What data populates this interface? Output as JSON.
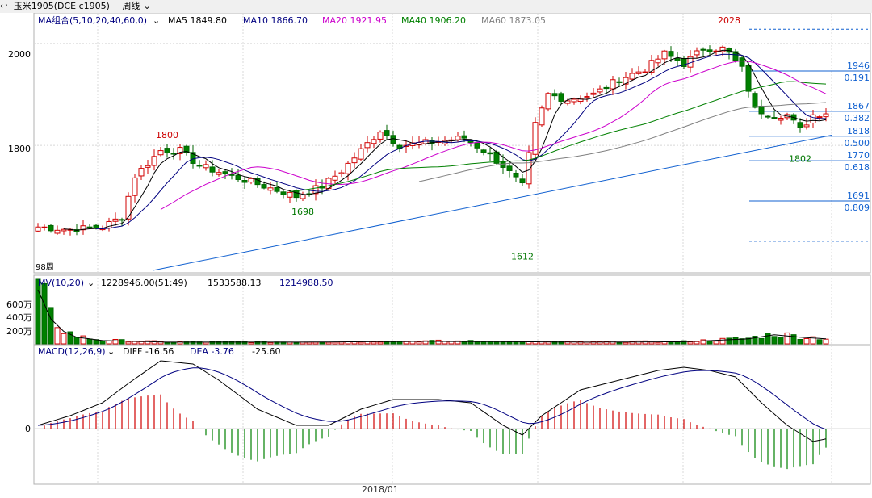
{
  "title_bar": {
    "symbol_prefix": "↩",
    "name": "玉米1905(DCE c1905)",
    "period": "周线",
    "period_arrow": "⌄"
  },
  "price_panel": {
    "legend_name": "MA组合(5,10,20,40,60,0)",
    "legend_arrow": "⌄",
    "ma": [
      {
        "label": "MA5 1849.80",
        "color": "#000000"
      },
      {
        "label": "MA10 1866.70",
        "color": "#000080"
      },
      {
        "label": "MA20 1921.95",
        "color": "#cc00cc"
      },
      {
        "label": "MA40 1906.20",
        "color": "#008000"
      },
      {
        "label": "MA60 1873.05",
        "color": "#808080"
      }
    ],
    "y_ticks": [
      {
        "value": 2000,
        "label": "2000"
      },
      {
        "value": 1800,
        "label": "1800"
      }
    ],
    "ylim": [
      1550,
      2060
    ],
    "markers": [
      {
        "label": "1800",
        "index": 20,
        "value": 1808,
        "color": "#cc0000",
        "pos": "above"
      },
      {
        "label": "1698",
        "index": 41,
        "value": 1683,
        "color": "#007700",
        "pos": "below"
      },
      {
        "label": "1612",
        "index": 75,
        "value": 1595,
        "color": "#007700",
        "pos": "below"
      },
      {
        "label": "2028",
        "index": 107,
        "value": 2033,
        "color": "#cc0000",
        "pos": "above"
      },
      {
        "label": "1802",
        "index": 118,
        "value": 1787,
        "color": "#007700",
        "pos": "below"
      }
    ],
    "fib_levels": [
      {
        "price": 2028,
        "label": "",
        "ratio": "",
        "dashed": true
      },
      {
        "price": 1946,
        "label": "1946",
        "ratio": "0.191",
        "dashed": false
      },
      {
        "price": 1867,
        "label": "1867",
        "ratio": "0.382",
        "dashed": false
      },
      {
        "price": 1818,
        "label": "1818",
        "ratio": "0.500",
        "dashed": false
      },
      {
        "price": 1770,
        "label": "1770",
        "ratio": "0.618",
        "dashed": false
      },
      {
        "price": 1691,
        "label": "1691",
        "ratio": "0.809",
        "dashed": false
      },
      {
        "price": 1612,
        "label": "",
        "ratio": "",
        "dashed": true
      }
    ],
    "corner_label": "98周",
    "date_label": "2018/01"
  },
  "volume_panel": {
    "legend_name": "MV(10,20)",
    "legend_arrow": "⌄",
    "values": [
      {
        "label": "1228946.00(51:49)",
        "color": "#000000"
      },
      {
        "label": "1533588.13",
        "color": "#000000"
      },
      {
        "label": "1214988.50",
        "color": "#000080"
      }
    ],
    "y_ticks": [
      "600万",
      "400万",
      "200万"
    ]
  },
  "macd_panel": {
    "legend_name": "MACD(12,26,9)",
    "legend_arrow": "⌄",
    "values": [
      {
        "label": "DIFF -16.56",
        "color": "#000000"
      },
      {
        "label": "DEA -3.76",
        "color": "#000080"
      },
      {
        "label": "-25.60",
        "color": "#000000"
      }
    ],
    "zero_label": "0"
  },
  "chart_data": {
    "type": "candlestick",
    "x_axis_label": "2018/01",
    "close_anchors": [
      [
        0,
        1640
      ],
      [
        5,
        1635
      ],
      [
        10,
        1640
      ],
      [
        13,
        1660
      ],
      [
        15,
        1740
      ],
      [
        19,
        1790
      ],
      [
        22,
        1790
      ],
      [
        25,
        1760
      ],
      [
        30,
        1740
      ],
      [
        35,
        1720
      ],
      [
        40,
        1700
      ],
      [
        44,
        1720
      ],
      [
        47,
        1750
      ],
      [
        50,
        1790
      ],
      [
        53,
        1830
      ],
      [
        56,
        1800
      ],
      [
        60,
        1805
      ],
      [
        63,
        1810
      ],
      [
        66,
        1815
      ],
      [
        69,
        1790
      ],
      [
        72,
        1760
      ],
      [
        75,
        1720
      ],
      [
        77,
        1840
      ],
      [
        79,
        1900
      ],
      [
        82,
        1890
      ],
      [
        86,
        1900
      ],
      [
        90,
        1930
      ],
      [
        94,
        1950
      ],
      [
        97,
        1980
      ],
      [
        100,
        1960
      ],
      [
        103,
        1990
      ],
      [
        106,
        1990
      ],
      [
        107,
        1980
      ],
      [
        109,
        1950
      ],
      [
        111,
        1870
      ],
      [
        114,
        1860
      ],
      [
        116,
        1860
      ],
      [
        118,
        1830
      ],
      [
        120,
        1860
      ],
      [
        122,
        1865
      ]
    ],
    "volume_anchors": [
      [
        0,
        650
      ],
      [
        2,
        300
      ],
      [
        4,
        150
      ],
      [
        6,
        80
      ],
      [
        10,
        40
      ],
      [
        20,
        20
      ],
      [
        40,
        20
      ],
      [
        60,
        30
      ],
      [
        75,
        25
      ],
      [
        85,
        20
      ],
      [
        100,
        25
      ],
      [
        110,
        60
      ],
      [
        114,
        110
      ],
      [
        118,
        80
      ],
      [
        122,
        60
      ]
    ],
    "macd_diff_anchors": [
      [
        0,
        5
      ],
      [
        5,
        20
      ],
      [
        10,
        40
      ],
      [
        14,
        70
      ],
      [
        19,
        105
      ],
      [
        24,
        100
      ],
      [
        28,
        75
      ],
      [
        34,
        30
      ],
      [
        40,
        5
      ],
      [
        45,
        5
      ],
      [
        50,
        30
      ],
      [
        55,
        45
      ],
      [
        62,
        45
      ],
      [
        67,
        40
      ],
      [
        72,
        5
      ],
      [
        75,
        -10
      ],
      [
        78,
        20
      ],
      [
        84,
        60
      ],
      [
        90,
        75
      ],
      [
        96,
        90
      ],
      [
        100,
        95
      ],
      [
        104,
        90
      ],
      [
        108,
        80
      ],
      [
        112,
        40
      ],
      [
        116,
        5
      ],
      [
        120,
        -20
      ],
      [
        122,
        -16
      ]
    ],
    "candle_count": 123
  }
}
